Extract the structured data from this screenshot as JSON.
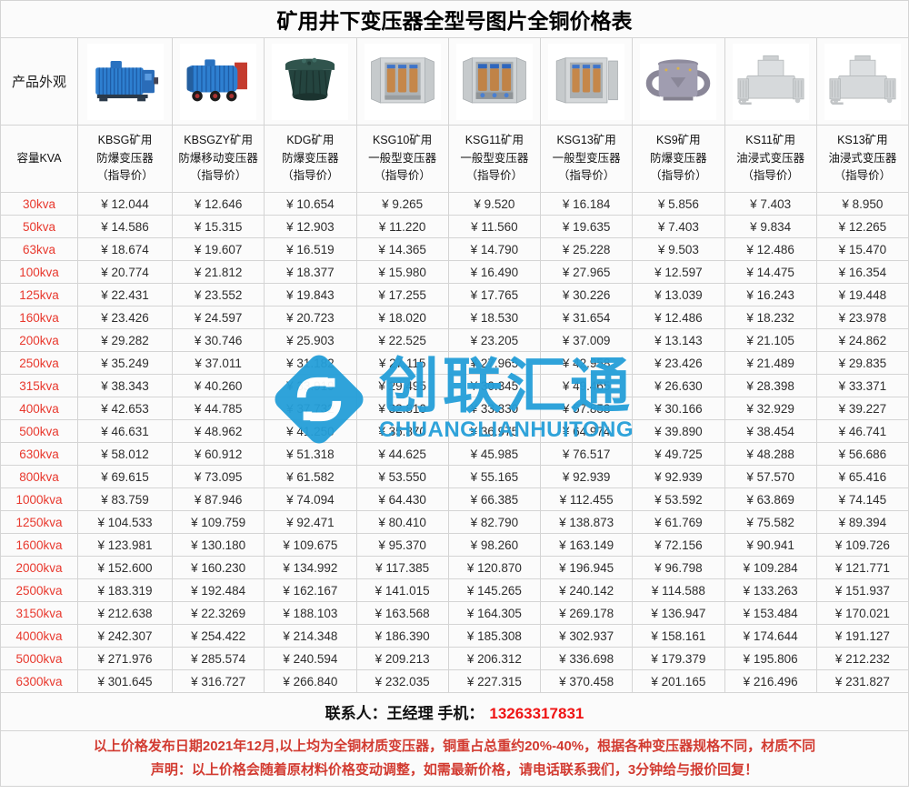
{
  "title": "矿用井下变压器全型号图片全铜价格表",
  "labels": {
    "appearance": "产品外观",
    "capacity": "容量KVA"
  },
  "currency": "¥",
  "products": [
    {
      "model": "KBSG矿用",
      "type": "防爆变压器",
      "note": "（指导价）",
      "image": "kbsg-blue-flameproof-transformer"
    },
    {
      "model": "KBSGZY矿用",
      "type": "防爆移动变压器",
      "note": "（指导价）",
      "image": "kbsgzy-blue-mobile-transformer"
    },
    {
      "model": "KDG矿用",
      "type": "防爆变压器",
      "note": "（指导价）",
      "image": "kdg-round-dark-transformer"
    },
    {
      "model": "KSG10矿用",
      "type": "一般型变压器",
      "note": "（指导价）",
      "image": "ksg10-cabinet-transformer"
    },
    {
      "model": "KSG11矿用",
      "type": "一般型变压器",
      "note": "（指导价）",
      "image": "ksg11-cabinet-transformer"
    },
    {
      "model": "KSG13矿用",
      "type": "一般型变压器",
      "note": "（指导价）",
      "image": "ksg13-cabinet-transformer"
    },
    {
      "model": "KS9矿用",
      "type": "防爆变压器",
      "note": "（指导价）",
      "image": "ks9-gray-loop-transformer"
    },
    {
      "model": "KS11矿用",
      "type": "油浸式变压器",
      "note": "（指导价）",
      "image": "ks11-oil-immersed-transformer"
    },
    {
      "model": "KS13矿用",
      "type": "油浸式变压器",
      "note": "（指导价）",
      "image": "ks13-oil-immersed-transformer"
    }
  ],
  "rows": [
    {
      "capacity": "30kva",
      "prices": [
        "12.044",
        "12.646",
        "10.654",
        "9.265",
        "9.520",
        "16.184",
        "5.856",
        "7.403",
        "8.950"
      ]
    },
    {
      "capacity": "50kva",
      "prices": [
        "14.586",
        "15.315",
        "12.903",
        "11.220",
        "11.560",
        "19.635",
        "7.403",
        "9.834",
        "12.265"
      ]
    },
    {
      "capacity": "63kva",
      "prices": [
        "18.674",
        "19.607",
        "16.519",
        "14.365",
        "14.790",
        "25.228",
        "9.503",
        "12.486",
        "15.470"
      ]
    },
    {
      "capacity": "100kva",
      "prices": [
        "20.774",
        "21.812",
        "18.377",
        "15.980",
        "16.490",
        "27.965",
        "12.597",
        "14.475",
        "16.354"
      ]
    },
    {
      "capacity": "125kva",
      "prices": [
        "22.431",
        "23.552",
        "19.843",
        "17.255",
        "17.765",
        "30.226",
        "13.039",
        "16.243",
        "19.448"
      ]
    },
    {
      "capacity": "160kva",
      "prices": [
        "23.426",
        "24.597",
        "20.723",
        "18.020",
        "18.530",
        "31.654",
        "12.486",
        "18.232",
        "23.978"
      ]
    },
    {
      "capacity": "200kva",
      "prices": [
        "29.282",
        "30.746",
        "25.903",
        "22.525",
        "23.205",
        "37.009",
        "13.143",
        "21.105",
        "24.862"
      ]
    },
    {
      "capacity": "250kva",
      "prices": [
        "35.249",
        "37.011",
        "31.182",
        "27.115",
        "27.965",
        "42.958",
        "23.426",
        "21.489",
        "29.835"
      ]
    },
    {
      "capacity": "315kva",
      "prices": [
        "38.343",
        "40.260",
        "33.919",
        "29.495",
        "30.345",
        "49.465",
        "26.630",
        "28.398",
        "33.371"
      ]
    },
    {
      "capacity": "400kva",
      "prices": [
        "42.653",
        "44.785",
        "37.732",
        "32.810",
        "33.330",
        "57.858",
        "30.166",
        "32.929",
        "39.227"
      ]
    },
    {
      "capacity": "500kva",
      "prices": [
        "46.631",
        "48.962",
        "41.250",
        "35.870",
        "36.975",
        "64.974",
        "39.890",
        "38.454",
        "46.741"
      ]
    },
    {
      "capacity": "630kva",
      "prices": [
        "58.012",
        "60.912",
        "51.318",
        "44.625",
        "45.985",
        "76.517",
        "49.725",
        "48.288",
        "56.686"
      ]
    },
    {
      "capacity": "800kva",
      "prices": [
        "69.615",
        "73.095",
        "61.582",
        "53.550",
        "55.165",
        "92.939",
        "92.939",
        "57.570",
        "65.416"
      ]
    },
    {
      "capacity": "1000kva",
      "prices": [
        "83.759",
        "87.946",
        "74.094",
        "64.430",
        "66.385",
        "112.455",
        "53.592",
        "63.869",
        "74.145"
      ]
    },
    {
      "capacity": "1250kva",
      "prices": [
        "104.533",
        "109.759",
        "92.471",
        "80.410",
        "82.790",
        "138.873",
        "61.769",
        "75.582",
        "89.394"
      ]
    },
    {
      "capacity": "1600kva",
      "prices": [
        "123.981",
        "130.180",
        "109.675",
        "95.370",
        "98.260",
        "163.149",
        "72.156",
        "90.941",
        "109.726"
      ]
    },
    {
      "capacity": "2000kva",
      "prices": [
        "152.600",
        "160.230",
        "134.992",
        "117.385",
        "120.870",
        "196.945",
        "96.798",
        "109.284",
        "121.771"
      ]
    },
    {
      "capacity": "2500kva",
      "prices": [
        "183.319",
        "192.484",
        "162.167",
        "141.015",
        "145.265",
        "240.142",
        "114.588",
        "133.263",
        "151.937"
      ]
    },
    {
      "capacity": "3150kva",
      "prices": [
        "212.638",
        "22.3269",
        "188.103",
        "163.568",
        "164.305",
        "269.178",
        "136.947",
        "153.484",
        "170.021"
      ]
    },
    {
      "capacity": "4000kva",
      "prices": [
        "242.307",
        "254.422",
        "214.348",
        "186.390",
        "185.308",
        "302.937",
        "158.161",
        "174.644",
        "191.127"
      ]
    },
    {
      "capacity": "5000kva",
      "prices": [
        "271.976",
        "285.574",
        "240.594",
        "209.213",
        "206.312",
        "336.698",
        "179.379",
        "195.806",
        "212.232"
      ]
    },
    {
      "capacity": "6300kva",
      "prices": [
        "301.645",
        "316.727",
        "266.840",
        "232.035",
        "227.315",
        "370.458",
        "201.165",
        "216.496",
        "231.827"
      ]
    }
  ],
  "contact": {
    "text": "联系人：王经理  手机：",
    "phone": "13263317831"
  },
  "notices": [
    "以上价格发布日期2021年12月,以上均为全铜材质变压器，铜重占总重约20%-40%，根据各种变压器规格不同，材质不同",
    "声明：以上价格会随着原材料价格变动调整，如需最新价格，请电话联系我们，3分钟给与报价回复！"
  ],
  "watermark": {
    "cn": "创联汇通",
    "en": "CHUANGLIANHUITONG",
    "color": "#259fd9"
  },
  "colors": {
    "capacity_red": "#e8382d",
    "phone_red": "#ef1414",
    "notice_red": "#d23b31",
    "watermark_blue": "#259fd9",
    "grid_line": "#d4d4d4"
  }
}
